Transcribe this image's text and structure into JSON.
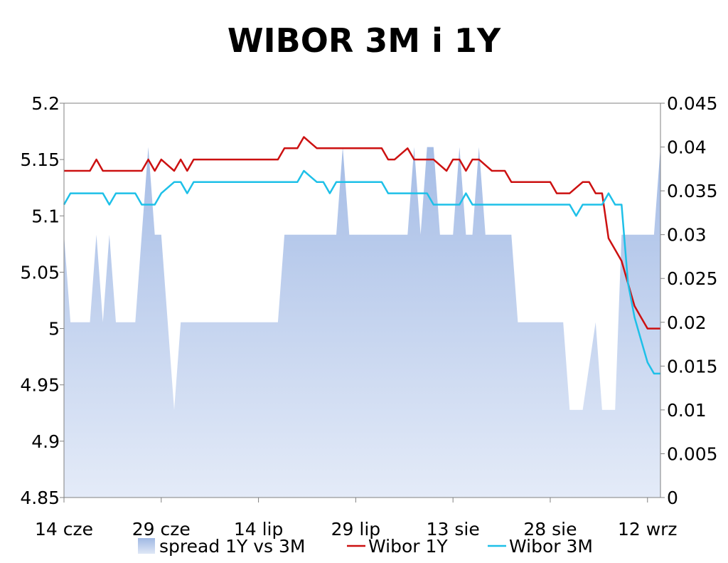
{
  "chart_data": {
    "type": "line",
    "title": "WIBOR 3M i 1Y",
    "x_tick_labels": [
      "14 cze",
      "29 cze",
      "14 lip",
      "29 lip",
      "13 sie",
      "28 sie",
      "12 wrz"
    ],
    "x_tick_days": [
      0,
      15,
      30,
      45,
      60,
      75,
      90
    ],
    "x_range": [
      0,
      92
    ],
    "y_left": {
      "range": [
        4.85,
        5.2
      ],
      "ticks": [
        "4.85",
        "4.9",
        "4.95",
        "5",
        "5.05",
        "5.1",
        "5.15",
        "5.2"
      ]
    },
    "y_right": {
      "range": [
        0,
        0.045
      ],
      "ticks": [
        "0",
        "0.005",
        "0.01",
        "0.015",
        "0.02",
        "0.025",
        "0.03",
        "0.035",
        "0.04",
        "0.045"
      ]
    },
    "grid": false,
    "legend_position": "bottom",
    "series": [
      {
        "name": "spread 1Y vs 3M",
        "type": "area",
        "axis": "right",
        "color": "#a9bfe6",
        "x": [
          0,
          1,
          2,
          3,
          4,
          5,
          6,
          7,
          8,
          9,
          10,
          11,
          12,
          13,
          14,
          15,
          16,
          17,
          18,
          19,
          20,
          21,
          22,
          23,
          24,
          25,
          26,
          27,
          28,
          29,
          30,
          31,
          32,
          33,
          34,
          35,
          36,
          37,
          38,
          39,
          40,
          41,
          42,
          43,
          44,
          45,
          46,
          47,
          48,
          49,
          50,
          51,
          52,
          53,
          54,
          55,
          56,
          57,
          58,
          59,
          60,
          61,
          62,
          63,
          64,
          65,
          66,
          67,
          68,
          69,
          70,
          71,
          72,
          73,
          74,
          75,
          76,
          77,
          78,
          79,
          80,
          81,
          82,
          83,
          84,
          85,
          86,
          87,
          88,
          89,
          90,
          91,
          92
        ],
        "values": [
          0.03,
          0.02,
          0.02,
          0.02,
          0.02,
          0.03,
          0.02,
          0.03,
          0.02,
          0.02,
          0.02,
          0.02,
          0.03,
          0.04,
          0.03,
          0.03,
          0.02,
          0.01,
          0.02,
          0.02,
          0.02,
          0.02,
          0.02,
          0.02,
          0.02,
          0.02,
          0.02,
          0.02,
          0.02,
          0.02,
          0.02,
          0.02,
          0.02,
          0.02,
          0.03,
          0.03,
          0.03,
          0.03,
          0.03,
          0.03,
          0.03,
          0.03,
          0.03,
          0.04,
          0.03,
          0.03,
          0.03,
          0.03,
          0.03,
          0.03,
          0.03,
          0.03,
          0.03,
          0.03,
          0.04,
          0.03,
          0.04,
          0.04,
          0.03,
          0.03,
          0.03,
          0.04,
          0.03,
          0.03,
          0.04,
          0.03,
          0.03,
          0.03,
          0.03,
          0.03,
          0.02,
          0.02,
          0.02,
          0.02,
          0.02,
          0.02,
          0.02,
          0.02,
          0.01,
          0.01,
          0.01,
          0.015,
          0.02,
          0.01,
          0.01,
          0.01,
          0.03,
          0.03,
          0.03,
          0.03,
          0.03,
          0.03,
          0.04
        ]
      },
      {
        "name": "Wibor 1Y",
        "type": "line",
        "axis": "left",
        "color": "#cc1111",
        "x": [
          0,
          1,
          2,
          3,
          4,
          5,
          6,
          7,
          8,
          9,
          10,
          11,
          12,
          13,
          14,
          15,
          16,
          17,
          18,
          19,
          20,
          21,
          22,
          23,
          24,
          25,
          26,
          27,
          28,
          29,
          30,
          31,
          32,
          33,
          34,
          35,
          36,
          37,
          38,
          39,
          40,
          41,
          42,
          43,
          44,
          45,
          46,
          47,
          48,
          49,
          50,
          51,
          52,
          53,
          54,
          55,
          56,
          57,
          58,
          59,
          60,
          61,
          62,
          63,
          64,
          65,
          66,
          67,
          68,
          69,
          70,
          71,
          72,
          73,
          74,
          75,
          76,
          77,
          78,
          79,
          80,
          81,
          82,
          83,
          84,
          85,
          86,
          87,
          88,
          89,
          90,
          91,
          92
        ],
        "values": [
          5.14,
          5.14,
          5.14,
          5.14,
          5.14,
          5.15,
          5.14,
          5.14,
          5.14,
          5.14,
          5.14,
          5.14,
          5.14,
          5.15,
          5.14,
          5.15,
          5.145,
          5.14,
          5.15,
          5.14,
          5.15,
          5.15,
          5.15,
          5.15,
          5.15,
          5.15,
          5.15,
          5.15,
          5.15,
          5.15,
          5.15,
          5.15,
          5.15,
          5.15,
          5.16,
          5.16,
          5.16,
          5.17,
          5.165,
          5.16,
          5.16,
          5.16,
          5.16,
          5.16,
          5.16,
          5.16,
          5.16,
          5.16,
          5.16,
          5.16,
          5.15,
          5.15,
          5.155,
          5.16,
          5.15,
          5.15,
          5.15,
          5.15,
          5.145,
          5.14,
          5.15,
          5.15,
          5.14,
          5.15,
          5.15,
          5.145,
          5.14,
          5.14,
          5.14,
          5.13,
          5.13,
          5.13,
          5.13,
          5.13,
          5.13,
          5.13,
          5.12,
          5.12,
          5.12,
          5.125,
          5.13,
          5.13,
          5.12,
          5.12,
          5.08,
          5.07,
          5.06,
          5.04,
          5.02,
          5.01,
          5.0,
          5.0,
          5.0
        ]
      },
      {
        "name": "Wibor 3M",
        "type": "line",
        "axis": "left",
        "color": "#1ec0e8",
        "x": [
          0,
          1,
          2,
          3,
          4,
          5,
          6,
          7,
          8,
          9,
          10,
          11,
          12,
          13,
          14,
          15,
          16,
          17,
          18,
          19,
          20,
          21,
          22,
          23,
          24,
          25,
          26,
          27,
          28,
          29,
          30,
          31,
          32,
          33,
          34,
          35,
          36,
          37,
          38,
          39,
          40,
          41,
          42,
          43,
          44,
          45,
          46,
          47,
          48,
          49,
          50,
          51,
          52,
          53,
          54,
          55,
          56,
          57,
          58,
          59,
          60,
          61,
          62,
          63,
          64,
          65,
          66,
          67,
          68,
          69,
          70,
          71,
          72,
          73,
          74,
          75,
          76,
          77,
          78,
          79,
          80,
          81,
          82,
          83,
          84,
          85,
          86,
          87,
          88,
          89,
          90,
          91,
          92
        ],
        "values": [
          5.11,
          5.12,
          5.12,
          5.12,
          5.12,
          5.12,
          5.12,
          5.11,
          5.12,
          5.12,
          5.12,
          5.12,
          5.11,
          5.11,
          5.11,
          5.12,
          5.125,
          5.13,
          5.13,
          5.12,
          5.13,
          5.13,
          5.13,
          5.13,
          5.13,
          5.13,
          5.13,
          5.13,
          5.13,
          5.13,
          5.13,
          5.13,
          5.13,
          5.13,
          5.13,
          5.13,
          5.13,
          5.14,
          5.135,
          5.13,
          5.13,
          5.12,
          5.13,
          5.13,
          5.13,
          5.13,
          5.13,
          5.13,
          5.13,
          5.13,
          5.12,
          5.12,
          5.12,
          5.12,
          5.12,
          5.12,
          5.12,
          5.11,
          5.11,
          5.11,
          5.11,
          5.11,
          5.12,
          5.11,
          5.11,
          5.11,
          5.11,
          5.11,
          5.11,
          5.11,
          5.11,
          5.11,
          5.11,
          5.11,
          5.11,
          5.11,
          5.11,
          5.11,
          5.11,
          5.1,
          5.11,
          5.11,
          5.11,
          5.11,
          5.12,
          5.11,
          5.11,
          5.04,
          5.01,
          4.99,
          4.97,
          4.96,
          4.96
        ]
      }
    ]
  }
}
